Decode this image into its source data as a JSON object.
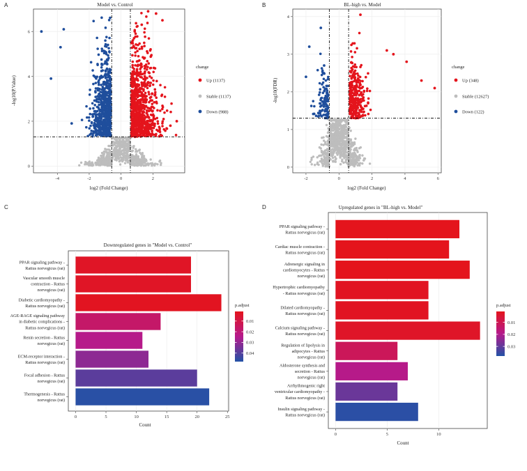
{
  "panels": {
    "A": {
      "letter": "A"
    },
    "B": {
      "letter": "B"
    },
    "C": {
      "letter": "C"
    },
    "D": {
      "letter": "D"
    }
  },
  "colors": {
    "up": "#e4141c",
    "stable": "#bdbdbd",
    "down": "#1f4e9c",
    "gradient_low": "#e4141c",
    "gradient_mid": "#b51a8c",
    "gradient_high": "#2352a6"
  },
  "chart_data": [
    {
      "id": "A",
      "type": "scatter",
      "title": "Model vs. Control",
      "xlabel": "log2 (Fold Change)",
      "ylabel": "-log10(P.Value)",
      "xlim": [
        -5.5,
        4.0
      ],
      "ylim": [
        -0.3,
        7.0
      ],
      "xticks": [
        -4,
        -2,
        0,
        2
      ],
      "yticks": [
        0,
        2,
        4,
        6
      ],
      "thresholds": {
        "x": [
          -0.585,
          0.585
        ],
        "y": 1.301
      },
      "grid": true,
      "legend": {
        "title": "change",
        "placement": "right",
        "entries": [
          {
            "name": "Up (1137)",
            "color_key": "up"
          },
          {
            "name": "Stable (1137)",
            "color_key": "stable"
          },
          {
            "name": "Down (988)",
            "color_key": "down"
          }
        ]
      },
      "sample_points": {
        "up": [
          [
            2.2,
            6.8
          ],
          [
            2.6,
            6.5
          ],
          [
            1.7,
            6.9
          ],
          [
            1.3,
            6.3
          ],
          [
            3.1,
            1.8
          ],
          [
            3.5,
            2.0
          ]
        ],
        "down": [
          [
            -5.0,
            6.0
          ],
          [
            -4.4,
            3.9
          ],
          [
            -3.6,
            6.1
          ],
          [
            -3.8,
            5.3
          ],
          [
            -3.1,
            1.9
          ]
        ]
      },
      "counts": {
        "up": 1137,
        "stable": 1137,
        "down": 988
      }
    },
    {
      "id": "B",
      "type": "scatter",
      "title": "BL-high vs. Model",
      "xlabel": "log2 (Fold Change)",
      "ylabel": "-log10(FDR)",
      "xlim": [
        -2.8,
        6.2
      ],
      "ylim": [
        -0.15,
        4.2
      ],
      "xticks": [
        -2,
        0,
        2,
        4,
        6
      ],
      "yticks": [
        0,
        1,
        2,
        3,
        4
      ],
      "thresholds": {
        "x": [
          -0.585,
          0.585
        ],
        "y": 1.301
      },
      "grid": true,
      "legend": {
        "title": "change",
        "placement": "right",
        "entries": [
          {
            "name": "Up (348)",
            "color_key": "up"
          },
          {
            "name": "Stable (12627)",
            "color_key": "stable"
          },
          {
            "name": "Down (122)",
            "color_key": "down"
          }
        ]
      },
      "sample_points": {
        "up": [
          [
            1.3,
            4.05
          ],
          [
            5.8,
            2.1
          ],
          [
            5.0,
            2.3
          ],
          [
            4.1,
            2.8
          ],
          [
            3.3,
            3.0
          ],
          [
            2.9,
            3.1
          ]
        ],
        "down": [
          [
            -1.8,
            3.2
          ],
          [
            -1.1,
            3.7
          ],
          [
            -2.0,
            2.4
          ],
          [
            -0.9,
            2.7
          ]
        ]
      },
      "counts": {
        "up": 348,
        "stable": 12627,
        "down": 122
      }
    },
    {
      "id": "C",
      "type": "bar",
      "orientation": "horizontal",
      "title": "Downregulated genes in \"Model vs. Control\"",
      "xlabel": "Count",
      "ylabel": "",
      "xlim": [
        -1.2,
        25.2
      ],
      "xticks": [
        0,
        5,
        10,
        15,
        20,
        25
      ],
      "legend": {
        "title": "p.adjust",
        "placement": "right",
        "ticks": [
          "0.01",
          "0.02",
          "0.03",
          "0.04"
        ],
        "tick_values": [
          0.01,
          0.02,
          0.03,
          0.04
        ],
        "range": [
          0.001,
          0.048
        ]
      },
      "categories": [
        [
          "PPAR signaling pathway -",
          "Rattus norvegicus (rat)"
        ],
        [
          "Vascular smooth muscle",
          "contraction - Rattus",
          "norvegicus (rat)"
        ],
        [
          "Diabetic cardiomyopathy -",
          "Rattus norvegicus (rat)"
        ],
        [
          "AGE-RAGE signaling pathway",
          "in diabetic complications -",
          "Rattus norvegicus (rat)"
        ],
        [
          "Renin secretion - Rattus",
          "norvegicus (rat)"
        ],
        [
          "ECM-receptor interaction -",
          "Rattus norvegicus (rat)"
        ],
        [
          "Focal adhesion - Rattus",
          "norvegicus (rat)"
        ],
        [
          "Thermogenesis - Rattus",
          "norvegicus (rat)"
        ]
      ],
      "values": [
        19,
        19,
        24,
        14,
        11,
        12,
        20,
        22
      ],
      "p_adjust": [
        0.003,
        0.003,
        0.002,
        0.017,
        0.024,
        0.031,
        0.039,
        0.047
      ]
    },
    {
      "id": "D",
      "type": "bar",
      "orientation": "horizontal",
      "title": "Upregulated genes in \"BL-high vs. Model\"",
      "xlabel": "Count",
      "ylabel": "",
      "xlim": [
        -0.7,
        14.7
      ],
      "xticks": [
        0,
        5,
        10
      ],
      "legend": {
        "title": "p.adjust",
        "placement": "right",
        "ticks": [
          "0.01",
          "0.02",
          "0.03"
        ],
        "tick_values": [
          0.01,
          0.02,
          0.03
        ],
        "range": [
          0.001,
          0.038
        ]
      },
      "categories": [
        [
          "PPAR signaling pathway -",
          "Rattus norvegicus (rat)"
        ],
        [
          "Cardiac muscle contraction -",
          "Rattus norvegicus (rat)"
        ],
        [
          "Adrenergic signaling in",
          "cardiomyocytes - Rattus",
          "norvegicus (rat)"
        ],
        [
          "Hypertrophic cardiomyopathy",
          "- Rattus norvegicus (rat)"
        ],
        [
          "Dilated cardiomyopathy -",
          "Rattus norvegicus (rat)"
        ],
        [
          "Calcium signaling pathway -",
          "Rattus norvegicus (rat)"
        ],
        [
          "Regulation of lipolysis in",
          "adipocytes - Rattus",
          "norvegicus (rat)"
        ],
        [
          "Aldosterone synthesis and",
          "secretion - Rattus",
          "norvegicus (rat)"
        ],
        [
          "Arrhythmogenic right",
          "ventricular cardiomyopathy -",
          "Rattus norvegicus (rat)"
        ],
        [
          "Insulin signaling pathway -",
          "Rattus norvegicus (rat)"
        ]
      ],
      "values": [
        12,
        11,
        13,
        9,
        9,
        14,
        6,
        7,
        6,
        8
      ],
      "p_adjust": [
        0.001,
        0.001,
        0.001,
        0.002,
        0.002,
        0.003,
        0.011,
        0.019,
        0.029,
        0.037
      ]
    }
  ]
}
